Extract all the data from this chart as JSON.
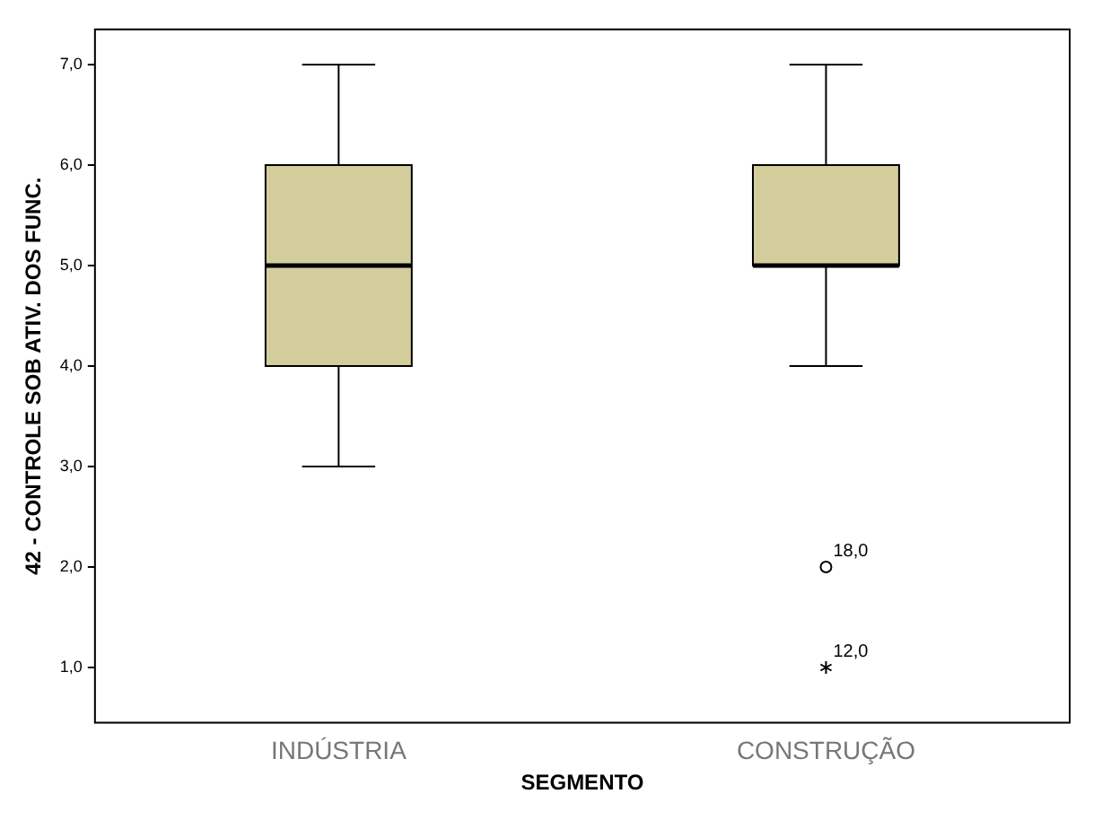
{
  "chart_data": {
    "type": "box",
    "xlabel": "SEGMENTO",
    "ylabel": "42 - CONTROLE SOB ATIV. DOS FUNC.",
    "categories": [
      "INDÚSTRIA",
      "CONSTRUÇÃO"
    ],
    "color": "#d3cd9c",
    "boxes": [
      {
        "low": 3,
        "q1": 4,
        "median": 5,
        "q3": 6,
        "high": 7
      },
      {
        "low": 4,
        "q1": 5,
        "median": 5,
        "q3": 6,
        "high": 7,
        "outliers": [
          2,
          1
        ]
      }
    ],
    "ylim": [
      0.45,
      7.35
    ],
    "yticks": [
      {
        "value": 1,
        "label": "1,0"
      },
      {
        "value": 2,
        "label": "2,0"
      },
      {
        "value": 3,
        "label": "3,0"
      },
      {
        "value": 4,
        "label": "4,0"
      },
      {
        "value": 5,
        "label": "5,0"
      },
      {
        "value": 6,
        "label": "6,0"
      },
      {
        "value": 7,
        "label": "7,0"
      }
    ],
    "annotations": [
      "18,0",
      "12,0"
    ],
    "grid": false,
    "legend": false
  }
}
